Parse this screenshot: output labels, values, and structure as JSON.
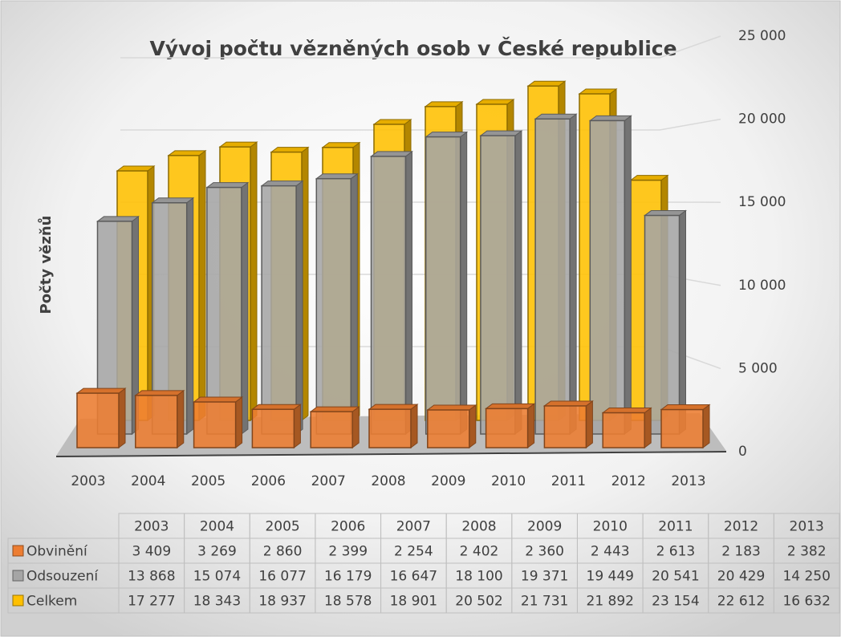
{
  "chart_data": {
    "type": "bar3d",
    "title": "Vývoj počtu vězněných osob v České republice",
    "y_label": "Počty vězňů",
    "categories": [
      "2003",
      "2004",
      "2005",
      "2006",
      "2007",
      "2008",
      "2009",
      "2010",
      "2011",
      "2012",
      "2013"
    ],
    "series": [
      {
        "name": "Obvinění",
        "color": "#ed7d31",
        "values": [
          3409,
          3269,
          2860,
          2399,
          2254,
          2402,
          2360,
          2443,
          2613,
          2183,
          2382
        ],
        "value_labels": [
          "3 409",
          "3 269",
          "2 860",
          "2 399",
          "2 254",
          "2 402",
          "2 360",
          "2 443",
          "2 613",
          "2 183",
          "2 382"
        ]
      },
      {
        "name": "Odsouzení",
        "color": "#a5a5a5",
        "values": [
          13868,
          15074,
          16077,
          16179,
          16647,
          18100,
          19371,
          19449,
          20541,
          20429,
          14250
        ],
        "value_labels": [
          "13 868",
          "15 074",
          "16 077",
          "16 179",
          "16 647",
          "18 100",
          "19 371",
          "19 449",
          "20 541",
          "20 429",
          "14 250"
        ]
      },
      {
        "name": "Celkem",
        "color": "#ffc000",
        "values": [
          17277,
          18343,
          18937,
          18578,
          18901,
          20502,
          21731,
          21892,
          23154,
          22612,
          16632
        ],
        "value_labels": [
          "17 277",
          "18 343",
          "18 937",
          "18 578",
          "18 901",
          "20 502",
          "21 731",
          "21 892",
          "23 154",
          "22 612",
          "16 632"
        ]
      }
    ],
    "ylim": [
      0,
      25000
    ],
    "yticks": [
      0,
      {
        "value": 5000,
        "label": "5 000"
      },
      {
        "value": 10000,
        "label": "10 000"
      },
      {
        "value": 15000,
        "label": "15 000"
      },
      {
        "value": 20000,
        "label": "20 000"
      },
      {
        "value": 25000,
        "label": "25 000"
      }
    ],
    "grid": true
  }
}
